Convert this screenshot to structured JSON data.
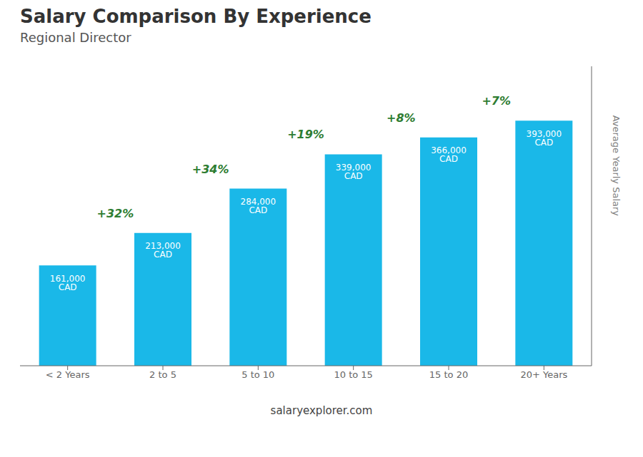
{
  "chart_data": {
    "type": "bar",
    "title": "Salary Comparison By Experience",
    "subtitle": "Regional Director",
    "y_label": "Average Yearly Salary",
    "categories": [
      "< 2 Years",
      "2 to 5",
      "5 to 10",
      "10 to 15",
      "15 to 20",
      "20+ Years"
    ],
    "values": [
      161000,
      213000,
      284000,
      339000,
      366000,
      393000
    ],
    "value_labels": [
      "161,000 CAD",
      "213,000 CAD",
      "284,000 CAD",
      "339,000 CAD",
      "366,000 CAD",
      "393,000 CAD"
    ],
    "data_labels": true,
    "color": "#1ab8e8",
    "ylim": [
      0,
      480000
    ],
    "grid": false,
    "tick_labels": "x",
    "annotations": [
      {
        "text": "+32%",
        "from": "< 2 Years",
        "to": "2 to 5"
      },
      {
        "text": "+34%",
        "from": "2 to 5",
        "to": "5 to 10"
      },
      {
        "text": "+19%",
        "from": "5 to 10",
        "to": "10 to 15"
      },
      {
        "text": "+8%",
        "from": "10 to 15",
        "to": "15 to 20"
      },
      {
        "text": "+7%",
        "from": "15 to 20",
        "to": "20+ Years"
      },
      {
        "text": "salaryexplorer.com"
      }
    ]
  }
}
